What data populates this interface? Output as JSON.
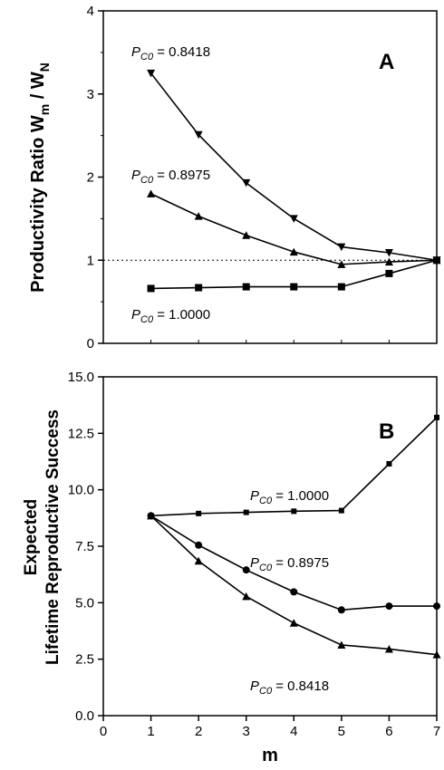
{
  "chart_data": [
    {
      "type": "line",
      "panel_letter": "A",
      "xlabel": "",
      "ylabel": "Productivity Ratio W",
      "ylabel_sub1": "m",
      "ylabel_mid": " / W",
      "ylabel_sub2": "N",
      "xlim": [
        0,
        7
      ],
      "ylim": [
        0,
        4
      ],
      "yticks": [
        "0",
        "1",
        "2",
        "3",
        "4"
      ],
      "xticks": [],
      "reference_line": 1,
      "series": [
        {
          "label_prefix": "P",
          "label_sub": "C0",
          "label_value": " = 0.8418",
          "marker": "triangle-down",
          "x": [
            1,
            2,
            3,
            4,
            5,
            6,
            7
          ],
          "y": [
            3.25,
            2.51,
            1.93,
            1.5,
            1.16,
            1.09,
            1.0
          ]
        },
        {
          "label_prefix": "P",
          "label_sub": "C0",
          "label_value": " = 0.8975",
          "marker": "triangle-up",
          "x": [
            1,
            2,
            3,
            4,
            5,
            6,
            7
          ],
          "y": [
            1.8,
            1.53,
            1.3,
            1.1,
            0.95,
            0.98,
            1.0
          ]
        },
        {
          "label_prefix": "P",
          "label_sub": "C0",
          "label_value": " = 1.0000",
          "marker": "square",
          "x": [
            1,
            2,
            3,
            4,
            5,
            6,
            7
          ],
          "y": [
            0.66,
            0.67,
            0.68,
            0.68,
            0.68,
            0.84,
            1.0
          ]
        }
      ]
    },
    {
      "type": "line",
      "panel_letter": "B",
      "xlabel": "m",
      "ylabel_line1": "Expected",
      "ylabel_line2": "Lifetime Reproductive Success",
      "xlim": [
        0,
        7
      ],
      "ylim": [
        0,
        15
      ],
      "yticks": [
        "0.0",
        "2.5",
        "5.0",
        "7.5",
        "10.0",
        "12.5",
        "15.0"
      ],
      "xticks": [
        "0",
        "1",
        "2",
        "3",
        "4",
        "5",
        "6",
        "7"
      ],
      "series": [
        {
          "label_prefix": "P",
          "label_sub": "C0",
          "label_value": " = 1.0000",
          "marker": "square-small",
          "x": [
            1,
            2,
            3,
            4,
            5,
            6,
            7
          ],
          "y": [
            8.85,
            8.95,
            9.0,
            9.05,
            9.08,
            11.15,
            13.2
          ]
        },
        {
          "label_prefix": "P",
          "label_sub": "C0",
          "label_value": " = 0.8975",
          "marker": "circle",
          "x": [
            1,
            2,
            3,
            4,
            5,
            6,
            7
          ],
          "y": [
            8.85,
            7.55,
            6.45,
            5.48,
            4.68,
            4.85,
            4.85
          ]
        },
        {
          "label_prefix": "P",
          "label_sub": "C0",
          "label_value": " = 0.8418",
          "marker": "triangle-up",
          "x": [
            1,
            2,
            3,
            4,
            5,
            6,
            7
          ],
          "y": [
            8.85,
            6.85,
            5.28,
            4.1,
            3.13,
            2.95,
            2.7
          ]
        }
      ]
    }
  ]
}
